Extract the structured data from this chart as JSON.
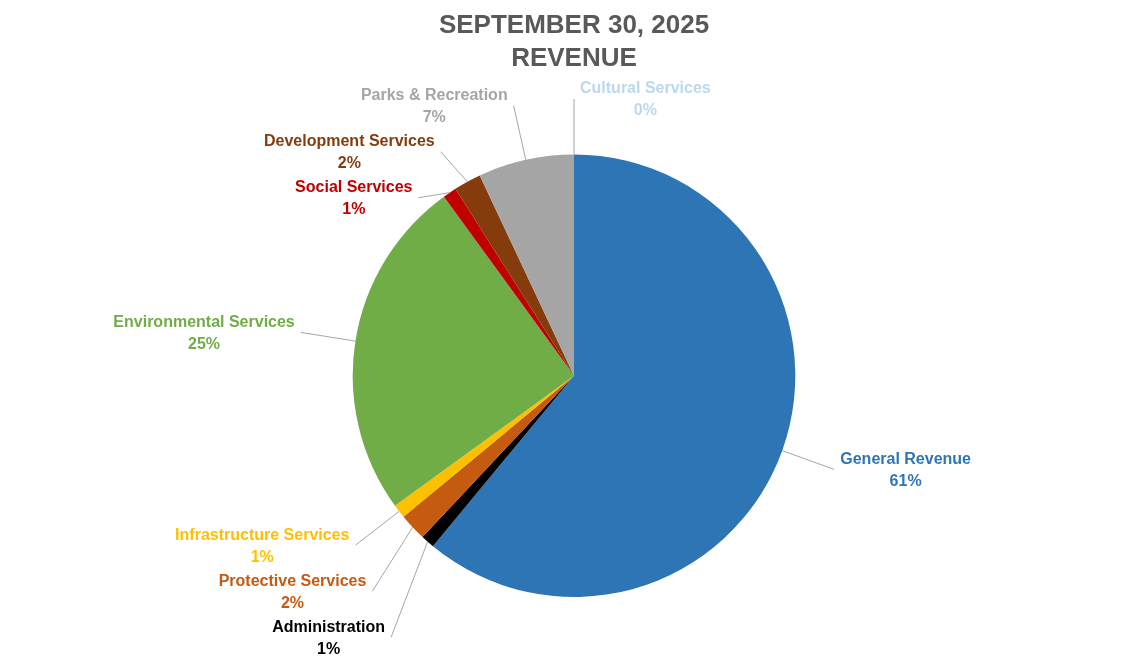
{
  "chart_data": {
    "type": "pie",
    "title": "SEPTEMBER 30, 2025",
    "subtitle": "REVENUE",
    "categories": [
      "General Revenue",
      "Administration",
      "Protective Services",
      "Infrastructure Services",
      "Environmental Services",
      "Social Services",
      "Development Services",
      "Parks & Recreation",
      "Cultural Services"
    ],
    "values": [
      61,
      1,
      2,
      1,
      25,
      1,
      2,
      7,
      0
    ],
    "value_labels": [
      "61%",
      "1%",
      "2%",
      "1%",
      "25%",
      "1%",
      "2%",
      "7%",
      "0%"
    ],
    "colors": [
      "#2e75b6",
      "#000000",
      "#c55a11",
      "#ffc000",
      "#70ad47",
      "#c00000",
      "#843c0c",
      "#a5a5a5",
      "#bdd7ee"
    ]
  }
}
